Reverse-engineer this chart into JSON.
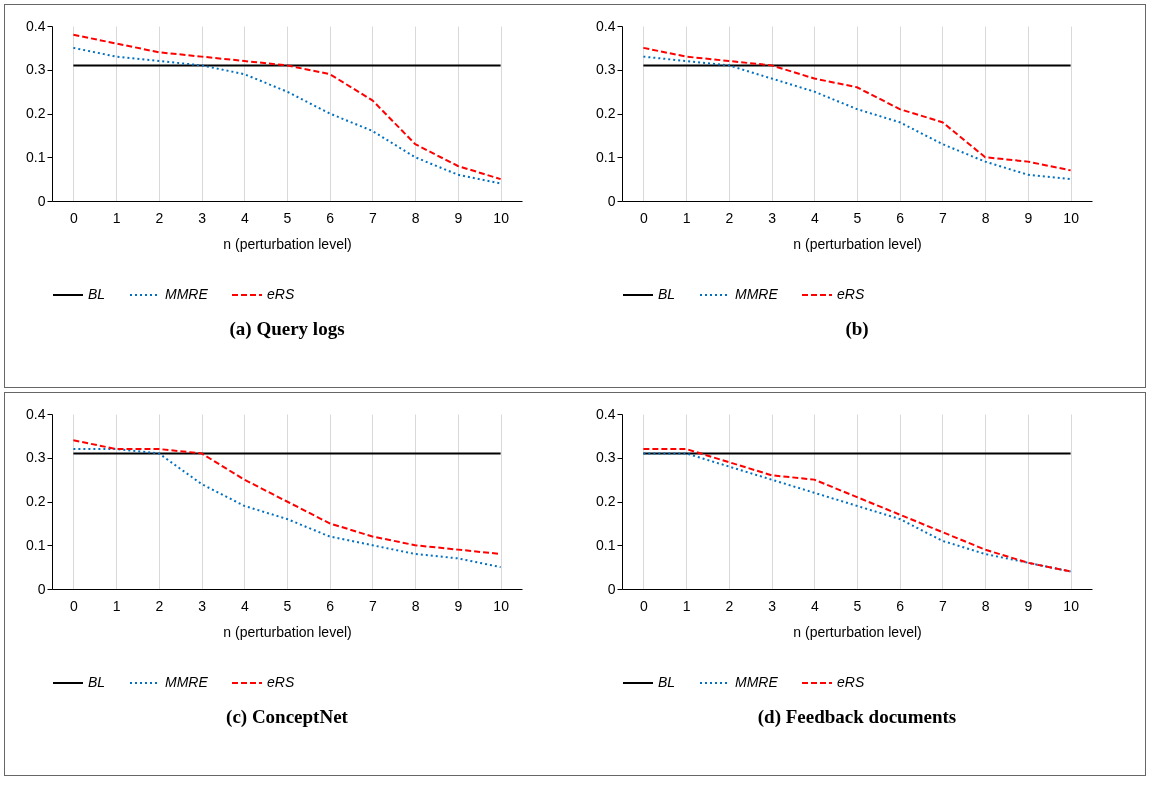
{
  "chart_data": [
    {
      "type": "line",
      "title": "(a)  Query logs",
      "xlabel": "n  (perturbation level)",
      "categories": [
        "0",
        "1",
        "2",
        "3",
        "4",
        "5",
        "6",
        "7",
        "8",
        "9",
        "10"
      ],
      "ylim": [
        0,
        0.4
      ],
      "yticks": [
        0,
        0.1,
        0.2,
        0.3,
        0.4
      ],
      "grid": "x",
      "legend": "bottom",
      "series": [
        {
          "name": "BL",
          "color": "#000000",
          "line_style": "solid",
          "values": [
            0.31,
            0.31,
            0.31,
            0.31,
            0.31,
            0.31,
            0.31,
            0.31,
            0.31,
            0.31,
            0.31
          ]
        },
        {
          "name": "MMRE",
          "color": "#0070c0",
          "line_style": "dotted",
          "values": [
            0.35,
            0.33,
            0.32,
            0.31,
            0.29,
            0.25,
            0.2,
            0.16,
            0.1,
            0.06,
            0.04
          ]
        },
        {
          "name": "eRS",
          "color": "#ff0000",
          "line_style": "dashed",
          "values": [
            0.38,
            0.36,
            0.34,
            0.33,
            0.32,
            0.31,
            0.29,
            0.23,
            0.13,
            0.08,
            0.05
          ]
        }
      ]
    },
    {
      "type": "line",
      "title": "(b)",
      "xlabel": "n  (perturbation level)",
      "categories": [
        "0",
        "1",
        "2",
        "3",
        "4",
        "5",
        "6",
        "7",
        "8",
        "9",
        "10"
      ],
      "ylim": [
        0,
        0.4
      ],
      "yticks": [
        0,
        0.1,
        0.2,
        0.3,
        0.4
      ],
      "grid": "x",
      "legend": "bottom",
      "series": [
        {
          "name": "BL",
          "color": "#000000",
          "line_style": "solid",
          "values": [
            0.31,
            0.31,
            0.31,
            0.31,
            0.31,
            0.31,
            0.31,
            0.31,
            0.31,
            0.31,
            0.31
          ]
        },
        {
          "name": "MMRE",
          "color": "#0070c0",
          "line_style": "dotted",
          "values": [
            0.33,
            0.32,
            0.31,
            0.28,
            0.25,
            0.21,
            0.18,
            0.13,
            0.09,
            0.06,
            0.05
          ]
        },
        {
          "name": "eRS",
          "color": "#ff0000",
          "line_style": "dashed",
          "values": [
            0.35,
            0.33,
            0.32,
            0.31,
            0.28,
            0.26,
            0.21,
            0.18,
            0.1,
            0.09,
            0.07
          ]
        }
      ]
    },
    {
      "type": "line",
      "title": "(c)  ConceptNet",
      "xlabel": "n  (perturbation level)",
      "categories": [
        "0",
        "1",
        "2",
        "3",
        "4",
        "5",
        "6",
        "7",
        "8",
        "9",
        "10"
      ],
      "ylim": [
        0,
        0.4
      ],
      "yticks": [
        0,
        0.1,
        0.2,
        0.3,
        0.4
      ],
      "grid": "x",
      "legend": "bottom",
      "series": [
        {
          "name": "BL",
          "color": "#000000",
          "line_style": "solid",
          "values": [
            0.31,
            0.31,
            0.31,
            0.31,
            0.31,
            0.31,
            0.31,
            0.31,
            0.31,
            0.31,
            0.31
          ]
        },
        {
          "name": "MMRE",
          "color": "#0070c0",
          "line_style": "dotted",
          "values": [
            0.32,
            0.32,
            0.31,
            0.24,
            0.19,
            0.16,
            0.12,
            0.1,
            0.08,
            0.07,
            0.05
          ]
        },
        {
          "name": "eRS",
          "color": "#ff0000",
          "line_style": "dashed",
          "values": [
            0.34,
            0.32,
            0.32,
            0.31,
            0.25,
            0.2,
            0.15,
            0.12,
            0.1,
            0.09,
            0.08
          ]
        }
      ]
    },
    {
      "type": "line",
      "title": "(d)  Feedback documents",
      "xlabel": "n  (perturbation level)",
      "categories": [
        "0",
        "1",
        "2",
        "3",
        "4",
        "5",
        "6",
        "7",
        "8",
        "9",
        "10"
      ],
      "ylim": [
        0,
        0.4
      ],
      "yticks": [
        0,
        0.1,
        0.2,
        0.3,
        0.4
      ],
      "grid": "x",
      "legend": "bottom",
      "series": [
        {
          "name": "BL",
          "color": "#000000",
          "line_style": "solid",
          "values": [
            0.31,
            0.31,
            0.31,
            0.31,
            0.31,
            0.31,
            0.31,
            0.31,
            0.31,
            0.31,
            0.31
          ]
        },
        {
          "name": "MMRE",
          "color": "#0070c0",
          "line_style": "dotted",
          "values": [
            0.31,
            0.31,
            0.28,
            0.25,
            0.22,
            0.19,
            0.16,
            0.11,
            0.08,
            0.06,
            0.04
          ]
        },
        {
          "name": "eRS",
          "color": "#ff0000",
          "line_style": "dashed",
          "values": [
            0.32,
            0.32,
            0.29,
            0.26,
            0.25,
            0.21,
            0.17,
            0.13,
            0.09,
            0.06,
            0.04
          ]
        }
      ]
    }
  ]
}
